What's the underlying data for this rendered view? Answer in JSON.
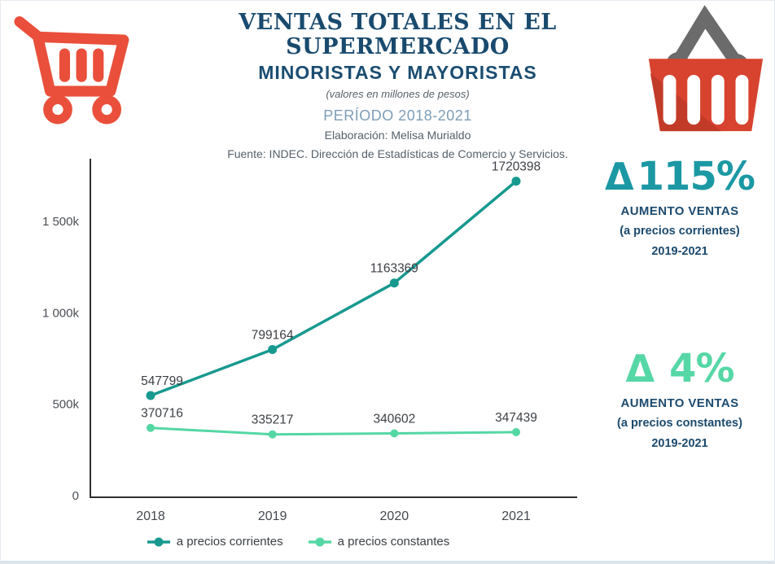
{
  "header": {
    "title": "VENTAS TOTALES EN EL SUPERMERCADO",
    "subtitle": "MINORISTAS Y MAYORISTAS",
    "units_note": "(valores en millones de pesos)",
    "period": "PERÍODO 2018-2021",
    "elaboration": "Elaboración: Melisa Murialdo",
    "source": "Fuente: INDEC. Dirección de Estadísticas de Comercio y Servicios."
  },
  "icons": {
    "top_left": "shopping-cart-icon",
    "top_right": "shopping-basket-icon"
  },
  "colors": {
    "navy": "#1b4a6e",
    "period_blue": "#7e9db7",
    "corrientes_teal": "#17998f",
    "constantes_mint": "#55d7a4",
    "delta_teal": "#1b98a3",
    "delta_mint": "#56d7a6",
    "cart_red": "#ea4f3b",
    "basket_red": "#d7432f",
    "basket_dark_red": "#c23b28",
    "handle_gray": "#6b6b6b",
    "axis_gray": "#2f2f2f",
    "label_gray": "#3c4045"
  },
  "chart_data": {
    "type": "line",
    "categories": [
      "2018",
      "2019",
      "2020",
      "2021"
    ],
    "series": [
      {
        "name": "a precios corrientes",
        "values": [
          547799,
          799164,
          1163369,
          1720398
        ],
        "color": "#17998f"
      },
      {
        "name": "a precios constantes",
        "values": [
          370716,
          335217,
          340602,
          347439
        ],
        "color": "#55d7a4"
      }
    ],
    "yticks": [
      {
        "value": 0,
        "label": "0"
      },
      {
        "value": 500000,
        "label": "500k"
      },
      {
        "value": 1000000,
        "label": "1 000k"
      },
      {
        "value": 1500000,
        "label": "1 500k"
      }
    ],
    "ylim": [
      0,
      1843000
    ],
    "xlabel": "",
    "ylabel": "",
    "grid": false,
    "data_labels": true,
    "legend_position": "bottom"
  },
  "annotations": [
    {
      "symbol": "Δ",
      "value": "115%",
      "caption": "AUMENTO VENTAS",
      "detail": "(a precios corrientes)",
      "period": "2019-2021",
      "color": "#1b98a3"
    },
    {
      "symbol": "Δ",
      "value": "4%",
      "caption": "AUMENTO VENTAS",
      "detail": "(a precios constantes)",
      "period": "2019-2021",
      "color": "#56d7a6"
    }
  ]
}
